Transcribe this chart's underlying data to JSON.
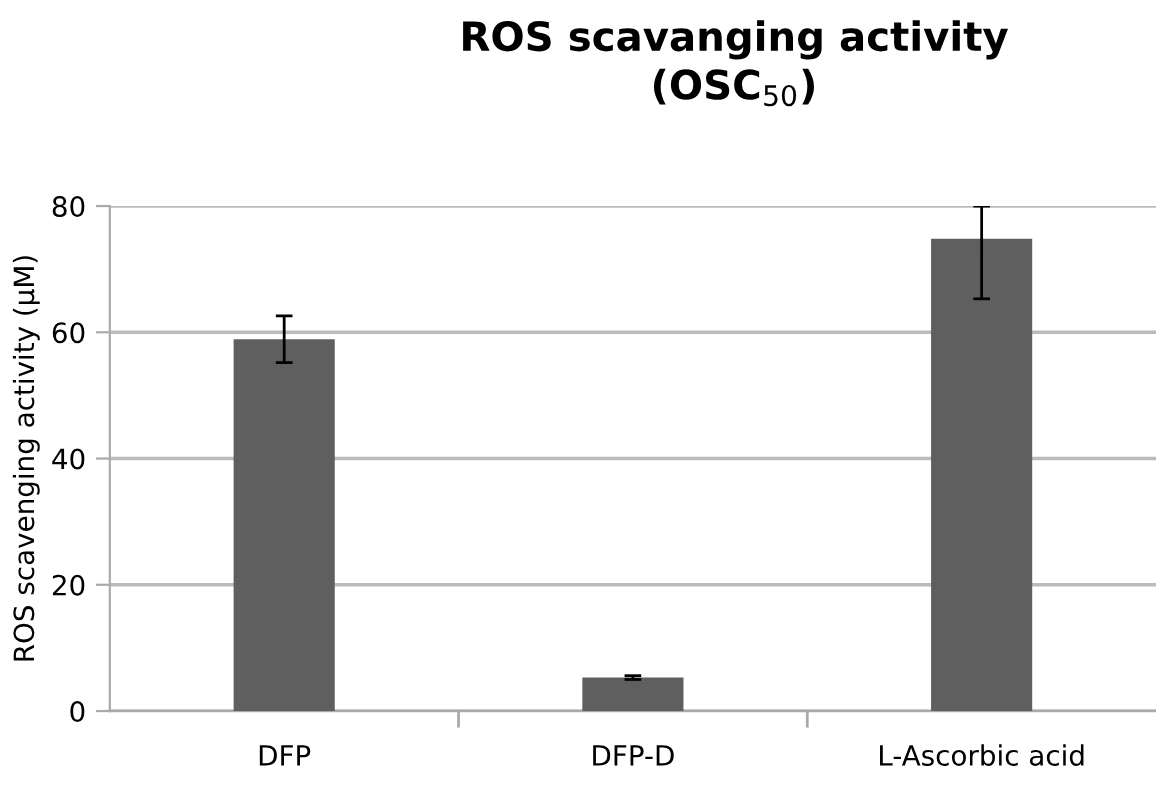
{
  "chart_data": {
    "type": "bar",
    "title": "ROS scavanging activity\n(OSC$_{50}$)",
    "ylabel": "ROS scavenging activity (μM)",
    "categories": [
      "DFP",
      "DFP-D",
      "L-Ascorbic acid"
    ],
    "values": [
      58.9,
      5.3,
      74.8
    ],
    "color": "#5f5f5f",
    "errors": [
      3.7,
      0.3,
      [
        65.3,
        80
      ]
    ],
    "ylim": [
      0,
      80
    ],
    "yticks": [
      0,
      20,
      40,
      60,
      80
    ],
    "grid": "y",
    "legend": false
  }
}
